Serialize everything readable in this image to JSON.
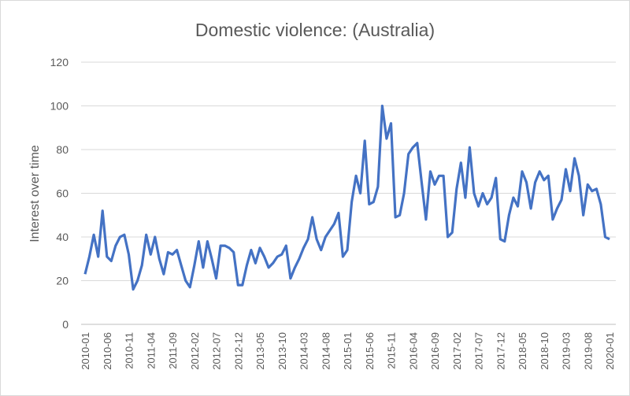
{
  "chart_data": {
    "type": "line",
    "title": "Domestic violence: (Australia)",
    "xlabel": "",
    "ylabel": "Interest over time",
    "ylim": [
      0,
      120
    ],
    "yticks": [
      0,
      20,
      40,
      60,
      80,
      100,
      120
    ],
    "grid": true,
    "legend": "none",
    "line_color": "#4472C4",
    "start": "2010-01",
    "xtick_every_months": 5,
    "series": [
      {
        "name": "Domestic violence: (Australia)",
        "values": [
          23,
          31,
          41,
          31,
          52,
          31,
          29,
          36,
          40,
          41,
          32,
          16,
          20,
          27,
          41,
          32,
          40,
          30,
          23,
          33,
          32,
          34,
          27,
          20,
          17,
          27,
          38,
          26,
          38,
          30,
          21,
          36,
          36,
          35,
          33,
          18,
          18,
          27,
          34,
          28,
          35,
          31,
          26,
          28,
          31,
          32,
          36,
          21,
          26,
          30,
          35,
          39,
          49,
          39,
          34,
          40,
          43,
          46,
          51,
          31,
          34,
          56,
          68,
          60,
          84,
          55,
          56,
          63,
          100,
          85,
          92,
          49,
          50,
          60,
          78,
          81,
          83,
          65,
          48,
          70,
          64,
          68,
          68,
          40,
          42,
          62,
          74,
          58,
          81,
          60,
          54,
          60,
          55,
          58,
          67,
          39,
          38,
          50,
          58,
          54,
          70,
          65,
          53,
          65,
          70,
          66,
          68,
          48,
          53,
          57,
          71,
          61,
          76,
          68,
          50,
          64,
          61,
          62,
          55,
          40,
          39
        ]
      }
    ]
  }
}
